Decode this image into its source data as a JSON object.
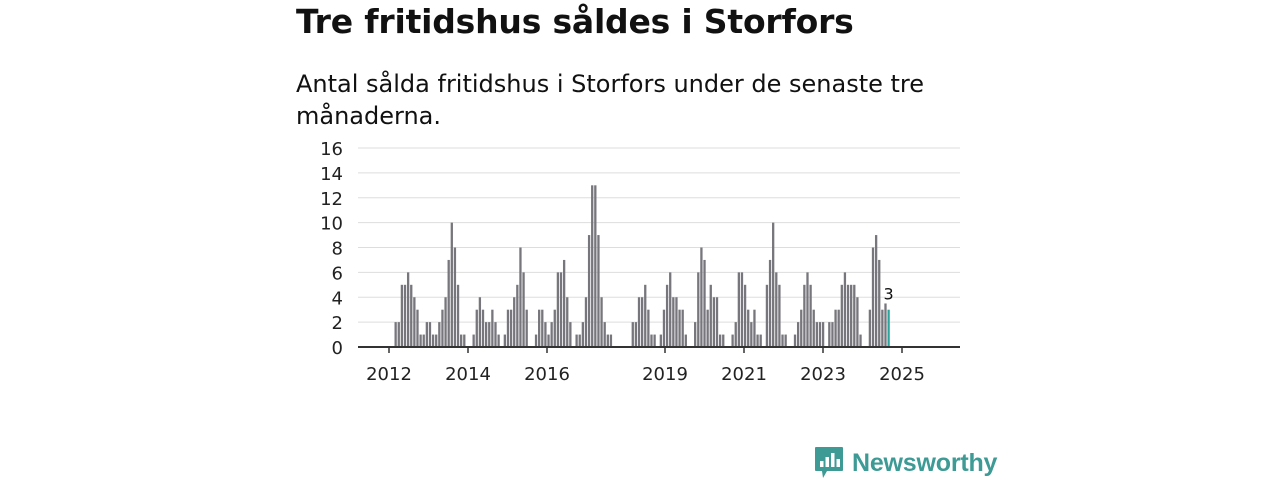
{
  "title": "Tre fritidshus såldes i Storfors",
  "subtitle": "Antal sålda fritidshus i Storfors under de senaste tre månaderna.",
  "brand": {
    "name": "Newsworthy",
    "colors": {
      "accent": "#3d9a95"
    }
  },
  "chart_data": {
    "type": "bar",
    "title": "Tre fritidshus såldes i Storfors",
    "subtitle": "Antal sålda fritidshus i Storfors under de senaste tre månaderna.",
    "xlabel": "",
    "ylabel": "",
    "ylim": [
      0,
      16
    ],
    "y_ticks": [
      0,
      2,
      4,
      6,
      8,
      10,
      12,
      14,
      16
    ],
    "x_tick_labels": [
      "2012",
      "2014",
      "2016",
      "2019",
      "2021",
      "2023",
      "2025"
    ],
    "grid": true,
    "legend": "none",
    "colors": {
      "bar": "#77767c",
      "highlight": "#2aa59d"
    },
    "highlight_label": "3",
    "series": [
      {
        "values": [
          2,
          2,
          5,
          5,
          6,
          5,
          4,
          3,
          1,
          1,
          2,
          2,
          1,
          1,
          2,
          3,
          4,
          7,
          10,
          8,
          5,
          1,
          1,
          null,
          null,
          1,
          3,
          4,
          3,
          2,
          2,
          3,
          2,
          1,
          null,
          1,
          3,
          3,
          4,
          5,
          8,
          6,
          3,
          null,
          null,
          1,
          3,
          3,
          2,
          1,
          2,
          3,
          6,
          6,
          7,
          4,
          2,
          null,
          1,
          1,
          2,
          4,
          9,
          13,
          13,
          9,
          4,
          2,
          1,
          1,
          null,
          null,
          null,
          null,
          null,
          null,
          2,
          2,
          4,
          4,
          5,
          3,
          1,
          1,
          null,
          1,
          3,
          5,
          6,
          4,
          4,
          3,
          3,
          1,
          null,
          null,
          2,
          6,
          8,
          7,
          3,
          5,
          4,
          4,
          1,
          1,
          null,
          null,
          1,
          2,
          6,
          6,
          5,
          3,
          2,
          3,
          1,
          1,
          null,
          5,
          7,
          10,
          6,
          5,
          1,
          1,
          null,
          null,
          1,
          2,
          3,
          5,
          6,
          5,
          3,
          2,
          2,
          2,
          null,
          2,
          2,
          3,
          3,
          5,
          6,
          5,
          5,
          5,
          4,
          1,
          null,
          null,
          3,
          8,
          9,
          7,
          3,
          3.5,
          3
        ]
      }
    ]
  }
}
